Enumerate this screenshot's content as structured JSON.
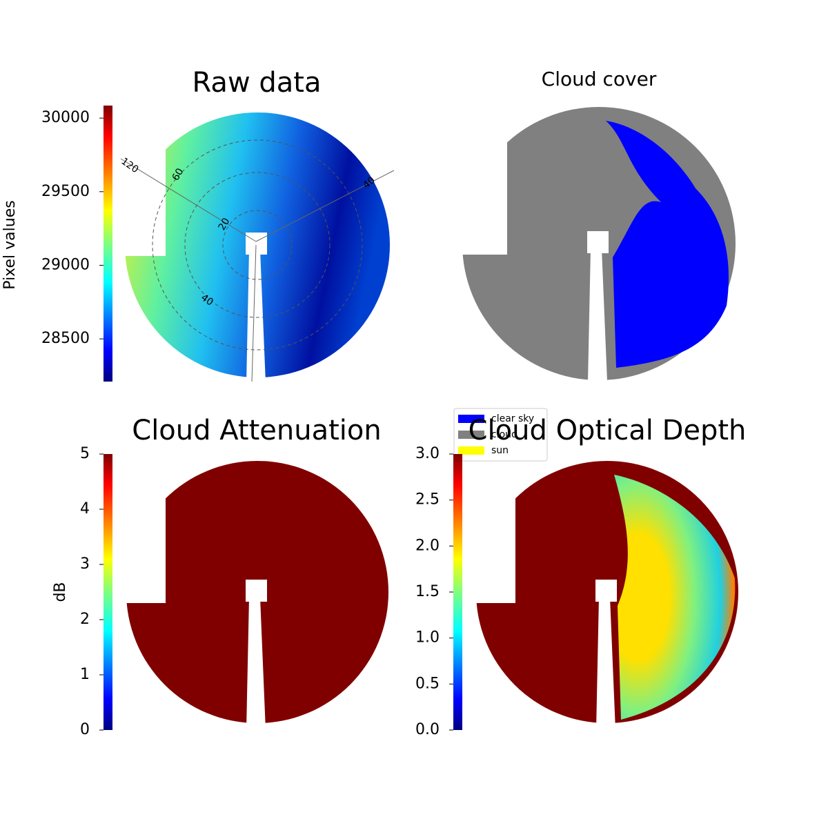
{
  "chart_data": [
    {
      "type": "image",
      "title": "Raw data",
      "ylabel": "Pixel values",
      "colormap": "jet",
      "ylim": [
        28210,
        30085
      ],
      "yticks": [
        28500,
        29000,
        29500,
        30000
      ],
      "annotations": [
        "120",
        "60",
        "20",
        "40",
        "40"
      ]
    },
    {
      "type": "categorical-image",
      "title": "Cloud cover",
      "categories": [
        "clear sky",
        "cloud",
        "sun"
      ],
      "colors": [
        "#0000ff",
        "#808080",
        "#ffff00"
      ]
    },
    {
      "type": "image",
      "title": "Cloud Attenuation",
      "ylabel": "dB",
      "colormap": "jet",
      "ylim": [
        0,
        5
      ],
      "yticks": [
        0,
        1,
        2,
        3,
        4,
        5
      ]
    },
    {
      "type": "image",
      "title": "Cloud Optical Depth",
      "colormap": "jet",
      "ylim": [
        0,
        3
      ],
      "yticks": [
        {
          "value": 0,
          "label": "0.0"
        },
        {
          "value": 0.5,
          "label": "0.5"
        },
        {
          "value": 1,
          "label": "1.0"
        },
        {
          "value": 1.5,
          "label": "1.5"
        },
        {
          "value": 2,
          "label": "2.0"
        },
        {
          "value": 2.5,
          "label": "2.5"
        },
        {
          "value": 3,
          "label": "3.0"
        }
      ]
    }
  ]
}
